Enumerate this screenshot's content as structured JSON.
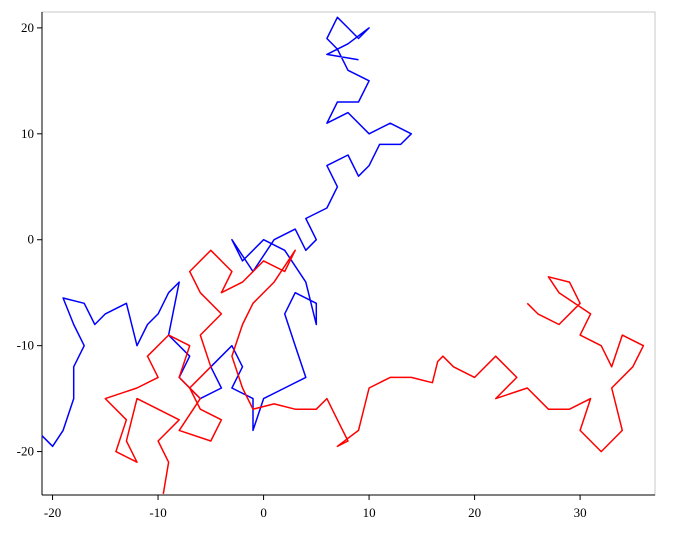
{
  "chart_data": {
    "type": "line",
    "xlim": [
      -21,
      37.1
    ],
    "ylim": [
      -24.1,
      21.5
    ],
    "xticks": [
      -20,
      -10,
      0,
      10,
      20,
      30
    ],
    "yticks": [
      -20,
      -10,
      0,
      10,
      20
    ],
    "grid": false,
    "series": [
      {
        "color": "#0000ff",
        "x": [
          -21,
          -20,
          -19,
          -18,
          -18,
          -17,
          -18,
          -19,
          -17,
          -16,
          -15,
          -13,
          -12,
          -11,
          -10,
          -9,
          -8,
          -9,
          -7,
          -8,
          -6,
          -4,
          -5,
          -3,
          -2,
          -3,
          -1,
          -1,
          0,
          2,
          4,
          3,
          2,
          3,
          5,
          5,
          4,
          2,
          0,
          -2,
          -3,
          -1,
          1,
          3,
          4,
          5,
          4,
          6,
          7,
          6,
          8,
          9,
          10,
          11,
          13,
          14,
          12,
          10,
          8,
          6,
          7,
          9,
          10,
          8,
          7,
          6,
          7,
          8,
          9,
          10,
          8,
          6,
          9
        ],
        "values": [
          -18.5,
          -19.5,
          -18,
          -15,
          -12,
          -10,
          -8,
          -5.5,
          -6,
          -8,
          -7,
          -6,
          -10,
          -8,
          -7,
          -5,
          -4,
          -9,
          -11,
          -13,
          -15,
          -14,
          -12,
          -10,
          -12,
          -14,
          -15,
          -18,
          -15,
          -14,
          -13,
          -10,
          -7,
          -5,
          -6,
          -8,
          -4,
          -1,
          0,
          -2,
          0,
          -3,
          0,
          1,
          -1,
          0,
          2,
          3,
          5,
          7,
          8,
          6,
          7,
          9,
          9,
          10,
          11,
          10,
          12,
          11,
          13,
          13,
          15,
          16,
          18,
          19,
          21,
          20,
          19,
          20,
          18.5,
          17.5,
          17
        ]
      },
      {
        "color": "#ff0000",
        "x": [
          -9.5,
          -9,
          -10,
          -8,
          -10,
          -12,
          -13,
          -12,
          -14,
          -13,
          -15,
          -12,
          -10,
          -11,
          -9,
          -7,
          -8,
          -6,
          -8,
          -5,
          -4,
          -6,
          -7,
          -5,
          -6,
          -4,
          -6,
          -7,
          -5,
          -3,
          -4,
          -2,
          0,
          2,
          3,
          1,
          -1,
          -2,
          -3,
          -2,
          -1,
          1,
          3,
          5,
          6,
          7,
          8,
          7,
          9,
          10,
          12,
          14,
          16,
          16.5,
          17,
          18,
          20,
          22,
          24,
          22,
          25,
          27,
          29,
          31,
          30,
          32,
          34,
          33,
          35,
          36,
          34,
          33,
          32,
          30,
          31,
          28,
          27,
          29,
          30,
          28,
          26,
          25
        ],
        "values": [
          -24,
          -21,
          -19,
          -17,
          -16,
          -15,
          -19,
          -21,
          -20,
          -17,
          -15,
          -14,
          -13,
          -11,
          -9,
          -10,
          -13,
          -15,
          -18,
          -19,
          -17,
          -16,
          -14,
          -12,
          -9,
          -7,
          -5,
          -3,
          -1,
          -3,
          -5,
          -4,
          -2,
          -3,
          -1,
          -4,
          -6,
          -8,
          -11,
          -14,
          -16,
          -15.5,
          -16,
          -16,
          -15,
          -17,
          -19,
          -19.5,
          -18,
          -14,
          -13,
          -13,
          -13.5,
          -11.5,
          -11,
          -12,
          -13,
          -11,
          -13,
          -15,
          -14,
          -16,
          -16,
          -15,
          -18,
          -20,
          -18,
          -14,
          -12,
          -10,
          -9,
          -12,
          -10,
          -9,
          -7,
          -5,
          -3.5,
          -4,
          -6,
          -8,
          -7,
          -6
        ]
      }
    ]
  }
}
